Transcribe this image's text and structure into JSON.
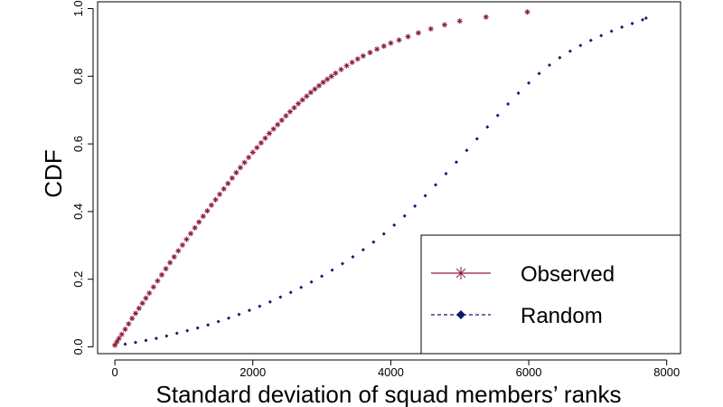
{
  "chart_data": {
    "type": "scatter",
    "xlabel": "Standard deviation of squad members’ ranks",
    "ylabel": "CDF",
    "xlim": [
      -250,
      8200
    ],
    "ylim": [
      -0.02,
      1.02
    ],
    "x_ticks": [
      0,
      2000,
      4000,
      6000,
      8000
    ],
    "y_ticks": [
      0.0,
      0.2,
      0.4,
      0.6,
      0.8,
      1.0
    ],
    "x_tick_labels": [
      "0",
      "2000",
      "4000",
      "6000",
      "8000"
    ],
    "y_tick_labels": [
      "0.0",
      "0.2",
      "0.4",
      "0.6",
      "0.8",
      "1.0"
    ],
    "legend": {
      "position": "bottom-right"
    },
    "series": [
      {
        "name": "Observed",
        "marker": "asterisk",
        "line_style": "solid",
        "color": "#8b1a3a",
        "x": [
          0,
          30,
          60,
          100,
          150,
          200,
          250,
          300,
          350,
          400,
          450,
          500,
          560,
          620,
          680,
          740,
          800,
          860,
          920,
          980,
          1040,
          1100,
          1160,
          1220,
          1280,
          1340,
          1400,
          1460,
          1520,
          1580,
          1640,
          1700,
          1760,
          1820,
          1880,
          1940,
          2000,
          2060,
          2120,
          2180,
          2240,
          2300,
          2360,
          2420,
          2480,
          2540,
          2600,
          2660,
          2720,
          2780,
          2840,
          2900,
          2960,
          3020,
          3080,
          3140,
          3200,
          3280,
          3360,
          3440,
          3520,
          3600,
          3700,
          3800,
          3900,
          4000,
          4120,
          4250,
          4400,
          4580,
          4780,
          5000,
          5380,
          5980
        ],
        "y": [
          0.005,
          0.015,
          0.025,
          0.037,
          0.052,
          0.068,
          0.084,
          0.099,
          0.114,
          0.129,
          0.144,
          0.159,
          0.177,
          0.195,
          0.213,
          0.231,
          0.249,
          0.266,
          0.284,
          0.301,
          0.318,
          0.335,
          0.352,
          0.369,
          0.386,
          0.402,
          0.419,
          0.435,
          0.451,
          0.467,
          0.483,
          0.499,
          0.515,
          0.53,
          0.545,
          0.56,
          0.575,
          0.589,
          0.603,
          0.617,
          0.631,
          0.644,
          0.657,
          0.67,
          0.683,
          0.695,
          0.707,
          0.719,
          0.73,
          0.741,
          0.752,
          0.762,
          0.772,
          0.782,
          0.791,
          0.8,
          0.809,
          0.82,
          0.831,
          0.841,
          0.851,
          0.86,
          0.87,
          0.88,
          0.889,
          0.898,
          0.907,
          0.917,
          0.928,
          0.94,
          0.952,
          0.963,
          0.975,
          0.99
        ]
      },
      {
        "name": "Random",
        "marker": "diamond",
        "line_style": "dashed",
        "color": "#0b1a6e",
        "x": [
          150,
          300,
          450,
          600,
          750,
          900,
          1050,
          1200,
          1350,
          1500,
          1650,
          1800,
          1950,
          2100,
          2250,
          2400,
          2550,
          2700,
          2850,
          3000,
          3150,
          3300,
          3450,
          3600,
          3750,
          3900,
          4050,
          4200,
          4350,
          4500,
          4650,
          4800,
          4950,
          5100,
          5250,
          5400,
          5550,
          5700,
          5850,
          6000,
          6150,
          6300,
          6450,
          6600,
          6750,
          6900,
          7050,
          7200,
          7350,
          7500,
          7650,
          7700
        ],
        "y": [
          0.008,
          0.013,
          0.019,
          0.025,
          0.032,
          0.04,
          0.048,
          0.056,
          0.065,
          0.075,
          0.085,
          0.096,
          0.108,
          0.12,
          0.133,
          0.147,
          0.161,
          0.176,
          0.192,
          0.209,
          0.227,
          0.246,
          0.266,
          0.287,
          0.31,
          0.334,
          0.36,
          0.387,
          0.416,
          0.447,
          0.479,
          0.512,
          0.546,
          0.581,
          0.615,
          0.65,
          0.684,
          0.718,
          0.75,
          0.78,
          0.808,
          0.833,
          0.855,
          0.874,
          0.891,
          0.906,
          0.92,
          0.933,
          0.945,
          0.956,
          0.967,
          0.972
        ]
      }
    ]
  }
}
